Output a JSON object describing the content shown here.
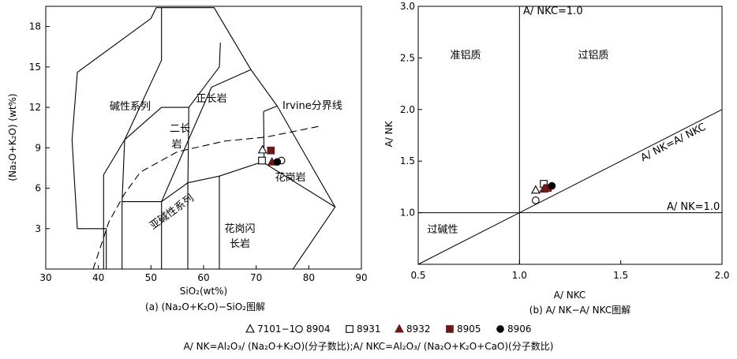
{
  "colors": {
    "ink": "#000000",
    "maroon": "#6b1a1a",
    "background": "#ffffff"
  },
  "chart_data": [
    {
      "type": "scatter",
      "panel_caption": "(a)  (Na₂O+K₂O)−SiO₂图解",
      "xlabel": "SiO₂(wt%)",
      "ylabel": "(Na₂O+K₂O) (wt%)",
      "xlim": [
        30,
        90
      ],
      "ylim": [
        0,
        19.5
      ],
      "xticks": [
        30,
        40,
        50,
        60,
        70,
        80,
        90
      ],
      "yticks": [
        3,
        6,
        9,
        12,
        15,
        18
      ],
      "field_labels": {
        "alkaline": "碱性系列",
        "syenite": "正长岩",
        "monzonite_1": "二长",
        "monzonite_2": "岩",
        "irvine": "Irvine分界线",
        "granite": "花岗岩",
        "subalkaline": "亚碱性系列",
        "granodiorite_1": "花岗闪",
        "granodiorite_2": "长岩"
      },
      "field_boundaries": [
        [
          [
            36,
            3.0
          ],
          [
            35,
            9.6
          ],
          [
            36.0,
            14.6
          ],
          [
            50,
            18.6
          ],
          [
            51,
            19.4
          ],
          [
            62,
            19.4
          ],
          [
            69,
            14.8
          ],
          [
            74,
            12.1
          ],
          [
            85,
            4.6
          ],
          [
            77,
            0
          ],
          [
            38,
            0
          ]
        ],
        [
          [
            36,
            3.0
          ],
          [
            41.5,
            3.0
          ],
          [
            41.5,
            0
          ]
        ],
        [
          [
            41,
            0
          ],
          [
            41,
            7.0
          ],
          [
            45,
            9.6
          ],
          [
            52,
            15.5
          ],
          [
            52,
            19.4
          ]
        ],
        [
          [
            45,
            9.6
          ],
          [
            44.5,
            5.0
          ],
          [
            44.5,
            0
          ]
        ],
        [
          [
            44.5,
            5.0
          ],
          [
            52,
            5.0
          ],
          [
            52,
            0
          ]
        ],
        [
          [
            52,
            5.0
          ],
          [
            57,
            6.4
          ],
          [
            57,
            0
          ]
        ],
        [
          [
            57,
            6.4
          ],
          [
            63,
            6.9
          ],
          [
            63,
            0
          ]
        ],
        [
          [
            52,
            5.0
          ],
          [
            61.5,
            13.5
          ],
          [
            69,
            14.8
          ]
        ],
        [
          [
            57,
            5.9
          ],
          [
            57.2,
            12.0
          ],
          [
            63,
            15.0
          ],
          [
            63.2,
            16.8
          ]
        ],
        [
          [
            63,
            6.9
          ],
          [
            71.5,
            8.0
          ],
          [
            71.4,
            11.7
          ]
        ],
        [
          [
            71.4,
            11.7
          ],
          [
            74,
            12.1
          ]
        ],
        [
          [
            71.0,
            8.0
          ],
          [
            85,
            4.6
          ]
        ],
        [
          [
            45,
            9.6
          ],
          [
            52,
            12.0
          ],
          [
            57.2,
            12.0
          ]
        ]
      ],
      "irvine_line": [
        [
          39,
          0
        ],
        [
          42,
          3.5
        ],
        [
          45,
          5.6
        ],
        [
          48,
          7.2
        ],
        [
          55,
          8.7
        ],
        [
          64,
          9.5
        ],
        [
          72,
          9.8
        ],
        [
          82,
          10.6
        ]
      ],
      "series": [
        {
          "name": "7101-1",
          "marker": "open-triangle",
          "x": 71.2,
          "y": 8.85
        },
        {
          "name": "8904",
          "marker": "open-circle",
          "x": 74.8,
          "y": 8.05
        },
        {
          "name": "8931",
          "marker": "open-square",
          "x": 71.1,
          "y": 8.05
        },
        {
          "name": "8932",
          "marker": "filled-triangle",
          "x": 73.0,
          "y": 7.95
        },
        {
          "name": "8905",
          "marker": "filled-square",
          "x": 72.8,
          "y": 8.8
        },
        {
          "name": "8906",
          "marker": "filled-circle",
          "x": 74.0,
          "y": 7.95
        }
      ]
    },
    {
      "type": "scatter",
      "panel_caption": "(b)  A/ NK−A/ NKC图解",
      "xlabel": "A/ NKC",
      "ylabel": "A/ NK",
      "xlim": [
        0.5,
        2.0
      ],
      "ylim": [
        0.5,
        3.0
      ],
      "xticks": [
        "0.5",
        "1.0",
        "1.5",
        "2.0"
      ],
      "yticks": [
        "1.0",
        "1.5",
        "2.0",
        "2.5",
        "3.0"
      ],
      "reference_lines": {
        "vertical": "A/ NKC=1.0",
        "horizontal": "A/ NK=1.0",
        "diagonal": "A/ NK=A/ NKC"
      },
      "field_labels": {
        "metaluminous": "准铝质",
        "peraluminous": "过铝质",
        "peralkaline": "过碱性"
      },
      "series": [
        {
          "name": "7101-1",
          "marker": "open-triangle",
          "x": 1.08,
          "y": 1.22
        },
        {
          "name": "8904",
          "marker": "open-circle",
          "x": 1.08,
          "y": 1.12
        },
        {
          "name": "8931",
          "marker": "open-square",
          "x": 1.12,
          "y": 1.28
        },
        {
          "name": "8932",
          "marker": "filled-triangle",
          "x": 1.12,
          "y": 1.23
        },
        {
          "name": "8905",
          "marker": "filled-square",
          "x": 1.14,
          "y": 1.24
        },
        {
          "name": "8906",
          "marker": "filled-circle",
          "x": 1.16,
          "y": 1.26
        }
      ]
    }
  ],
  "legend": [
    {
      "label": "7101−1",
      "marker": "open-triangle"
    },
    {
      "label": "8904",
      "marker": "open-circle"
    },
    {
      "label": "8931",
      "marker": "open-square"
    },
    {
      "label": "8932",
      "marker": "filled-triangle"
    },
    {
      "label": "8905",
      "marker": "filled-square"
    },
    {
      "label": "8906",
      "marker": "filled-circle"
    }
  ],
  "formula_note": "A/ NK=Al₂O₃/ (Na₂O+K₂O)(分子数比);A/ NKC=Al₂O₃/ (Na₂O+K₂O+CaO)(分子数比)"
}
